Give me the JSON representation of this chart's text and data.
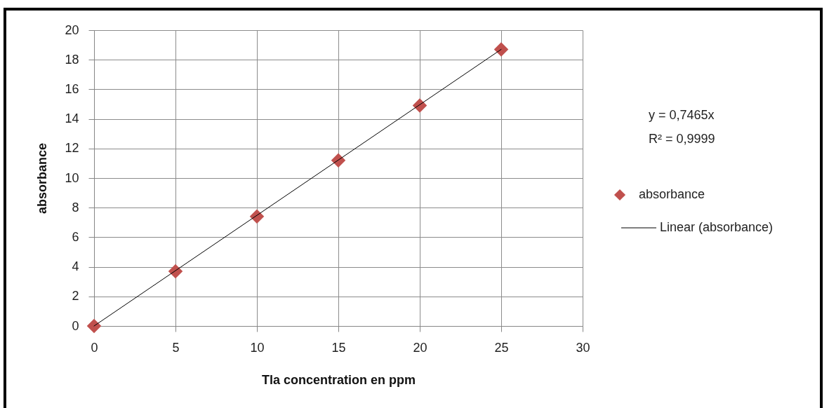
{
  "chart_data": {
    "type": "scatter",
    "xlabel": "Tla concentration en ppm",
    "ylabel": "absorbance",
    "x": [
      0,
      5,
      10,
      15,
      20,
      25
    ],
    "series": [
      {
        "name": "absorbance",
        "color": "#c0504d",
        "marker": "diamond",
        "values": [
          0,
          3.7,
          7.4,
          11.2,
          14.9,
          18.7
        ]
      },
      {
        "name": "Linear (absorbance)",
        "type": "line",
        "color": "#000000",
        "marker": "none",
        "x": [
          0,
          25
        ],
        "values": [
          0,
          18.7
        ]
      }
    ],
    "xlim": [
      0,
      30
    ],
    "ylim": [
      0,
      20
    ],
    "xticks": [
      0,
      5,
      10,
      15,
      20,
      25,
      30
    ],
    "yticks": [
      0,
      2,
      4,
      6,
      8,
      10,
      12,
      14,
      16,
      18,
      20
    ],
    "grid": true,
    "legend": "right",
    "annotations": [
      "y = 0,7465x",
      "R² = 0,9999"
    ]
  }
}
